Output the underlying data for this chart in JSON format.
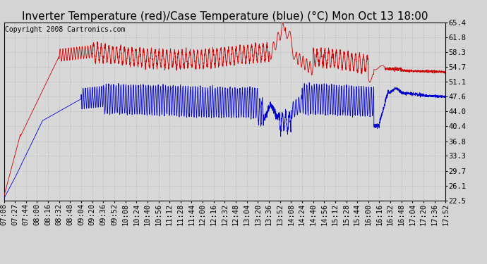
{
  "title": "Inverter Temperature (red)/Case Temperature (blue) (°C) Mon Oct 13 18:00",
  "copyright": "Copyright 2008 Cartronics.com",
  "yticks": [
    22.5,
    26.1,
    29.7,
    33.3,
    36.8,
    40.4,
    44.0,
    47.6,
    51.1,
    54.7,
    58.3,
    61.8,
    65.4
  ],
  "ymin": 22.5,
  "ymax": 65.4,
  "xtick_labels": [
    "07:08",
    "07:27",
    "07:44",
    "08:00",
    "08:16",
    "08:32",
    "08:48",
    "09:04",
    "09:20",
    "09:36",
    "09:52",
    "10:08",
    "10:24",
    "10:40",
    "10:56",
    "11:12",
    "11:28",
    "11:44",
    "12:00",
    "12:16",
    "12:32",
    "12:48",
    "13:04",
    "13:20",
    "13:36",
    "13:52",
    "14:08",
    "14:24",
    "14:40",
    "14:56",
    "15:12",
    "15:28",
    "15:44",
    "16:00",
    "16:16",
    "16:32",
    "16:48",
    "17:04",
    "17:20",
    "17:36",
    "17:52"
  ],
  "bg_color": "#d4d4d4",
  "plot_bg_color": "#d8d8d8",
  "grid_color": "#b0b0b0",
  "red_color": "#cc0000",
  "blue_color": "#0000cc",
  "title_fontsize": 11,
  "tick_fontsize": 7.5,
  "copyright_fontsize": 7
}
